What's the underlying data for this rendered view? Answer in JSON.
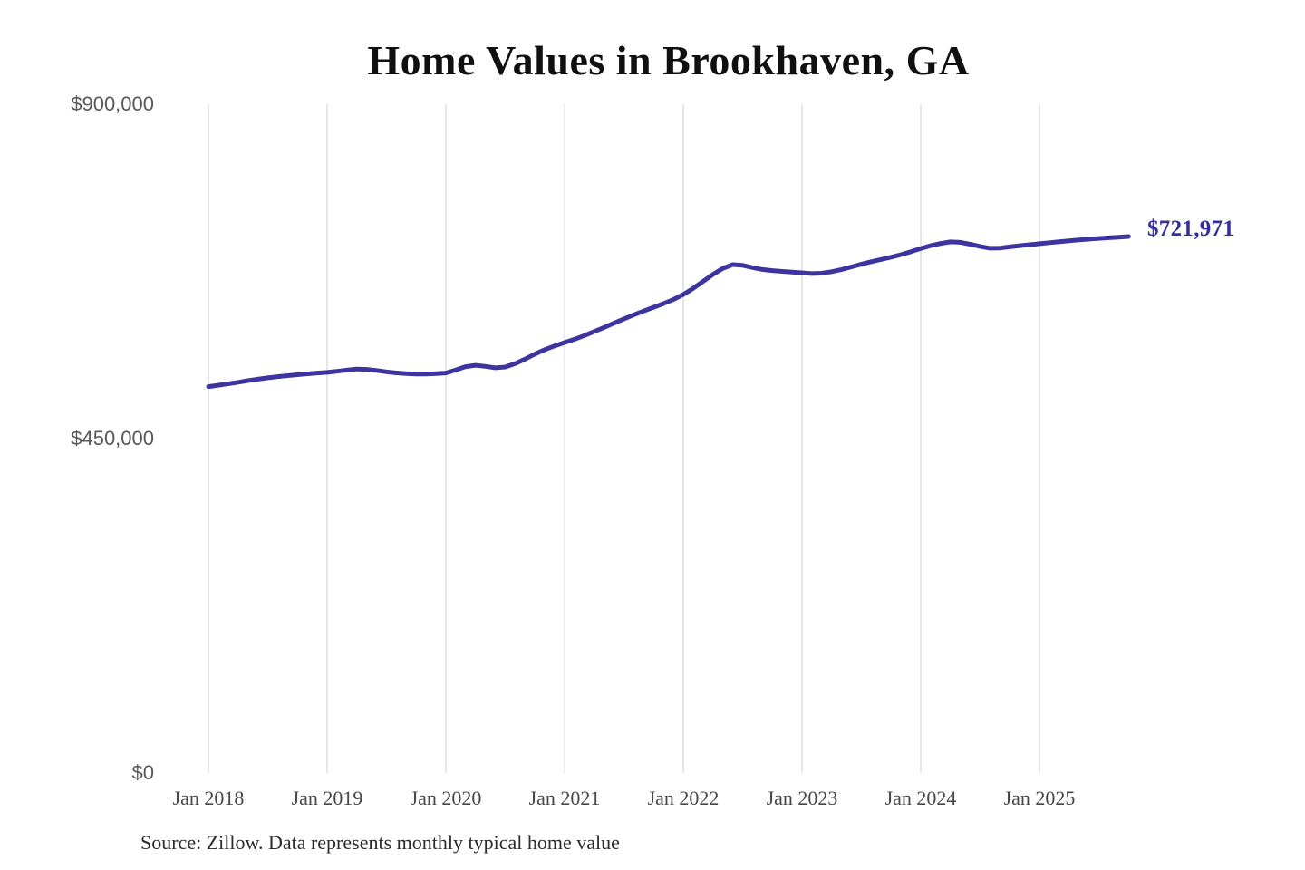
{
  "page": {
    "background": "#ffffff"
  },
  "chart_data": {
    "type": "line",
    "title": "Home Values in Brookhaven, GA",
    "source_note": "Source: Zillow. Data represents monthly typical home value",
    "latest_value_label": "$721,971",
    "latest_value": 721971,
    "grid": "vertical-only",
    "legend": "none",
    "ylim": [
      0,
      900000
    ],
    "y_ticks": [
      {
        "label": "$0",
        "value": 0
      },
      {
        "label": "$450,000",
        "value": 450000
      },
      {
        "label": "$900,000",
        "value": 900000
      }
    ],
    "x_ticks": [
      {
        "label": "Jan 2018",
        "month": "2018-01"
      },
      {
        "label": "Jan 2019",
        "month": "2019-01"
      },
      {
        "label": "Jan 2020",
        "month": "2020-01"
      },
      {
        "label": "Jan 2021",
        "month": "2021-01"
      },
      {
        "label": "Jan 2022",
        "month": "2022-01"
      },
      {
        "label": "Jan 2023",
        "month": "2023-01"
      },
      {
        "label": "Jan 2024",
        "month": "2024-01"
      },
      {
        "label": "Jan 2025",
        "month": "2025-01"
      }
    ],
    "series": [
      {
        "name": "Monthly typical home value",
        "color": "#3d34a0",
        "x": [
          "2018-01",
          "2018-02",
          "2018-03",
          "2018-04",
          "2018-05",
          "2018-06",
          "2018-07",
          "2018-08",
          "2018-09",
          "2018-10",
          "2018-11",
          "2018-12",
          "2019-01",
          "2019-02",
          "2019-03",
          "2019-04",
          "2019-05",
          "2019-06",
          "2019-07",
          "2019-08",
          "2019-09",
          "2019-10",
          "2019-11",
          "2019-12",
          "2020-01",
          "2020-02",
          "2020-03",
          "2020-04",
          "2020-05",
          "2020-06",
          "2020-07",
          "2020-08",
          "2020-09",
          "2020-10",
          "2020-11",
          "2020-12",
          "2021-01",
          "2021-02",
          "2021-03",
          "2021-04",
          "2021-05",
          "2021-06",
          "2021-07",
          "2021-08",
          "2021-09",
          "2021-10",
          "2021-11",
          "2021-12",
          "2022-01",
          "2022-02",
          "2022-03",
          "2022-04",
          "2022-05",
          "2022-06",
          "2022-07",
          "2022-08",
          "2022-09",
          "2022-10",
          "2022-11",
          "2022-12",
          "2023-01",
          "2023-02",
          "2023-03",
          "2023-04",
          "2023-05",
          "2023-06",
          "2023-07",
          "2023-08",
          "2023-09",
          "2023-10",
          "2023-11",
          "2023-12",
          "2024-01",
          "2024-02",
          "2024-03",
          "2024-04",
          "2024-05",
          "2024-06",
          "2024-07",
          "2024-08",
          "2024-09",
          "2024-10",
          "2024-11",
          "2024-12",
          "2025-01",
          "2025-02",
          "2025-03",
          "2025-04",
          "2025-05",
          "2025-06",
          "2025-07",
          "2025-08",
          "2025-09",
          "2025-10"
        ],
        "values": [
          520000,
          521800,
          523800,
          525900,
          528000,
          530000,
          531800,
          533400,
          534800,
          536000,
          537200,
          538300,
          539200,
          540600,
          542200,
          543600,
          543200,
          541700,
          539900,
          538400,
          537400,
          536900,
          536900,
          537400,
          538300,
          542500,
          546800,
          548600,
          547200,
          545300,
          546400,
          550800,
          557000,
          563800,
          569800,
          574800,
          579300,
          583600,
          588600,
          594100,
          599600,
          605400,
          611100,
          616600,
          621700,
          626700,
          631700,
          637200,
          643900,
          652200,
          661500,
          671000,
          679100,
          684100,
          683200,
          680100,
          677600,
          676100,
          675000,
          674000,
          673200,
          672100,
          672600,
          674600,
          677600,
          681100,
          684600,
          688100,
          691100,
          694100,
          697600,
          701500,
          705800,
          709600,
          712600,
          714800,
          714100,
          711600,
          708600,
          706200,
          706500,
          708000,
          709600,
          711000,
          712300,
          713600,
          714900,
          716100,
          717300,
          718400,
          719400,
          720300,
          721100,
          721971
        ]
      }
    ],
    "colors": {
      "line": "#3d34a0",
      "latest_label": "#352da0",
      "grid": "#cccccc",
      "title": "#101010",
      "x_axis_text": "#474747",
      "y_axis_text": "#585858",
      "source_text": "#2b2b2b"
    }
  }
}
